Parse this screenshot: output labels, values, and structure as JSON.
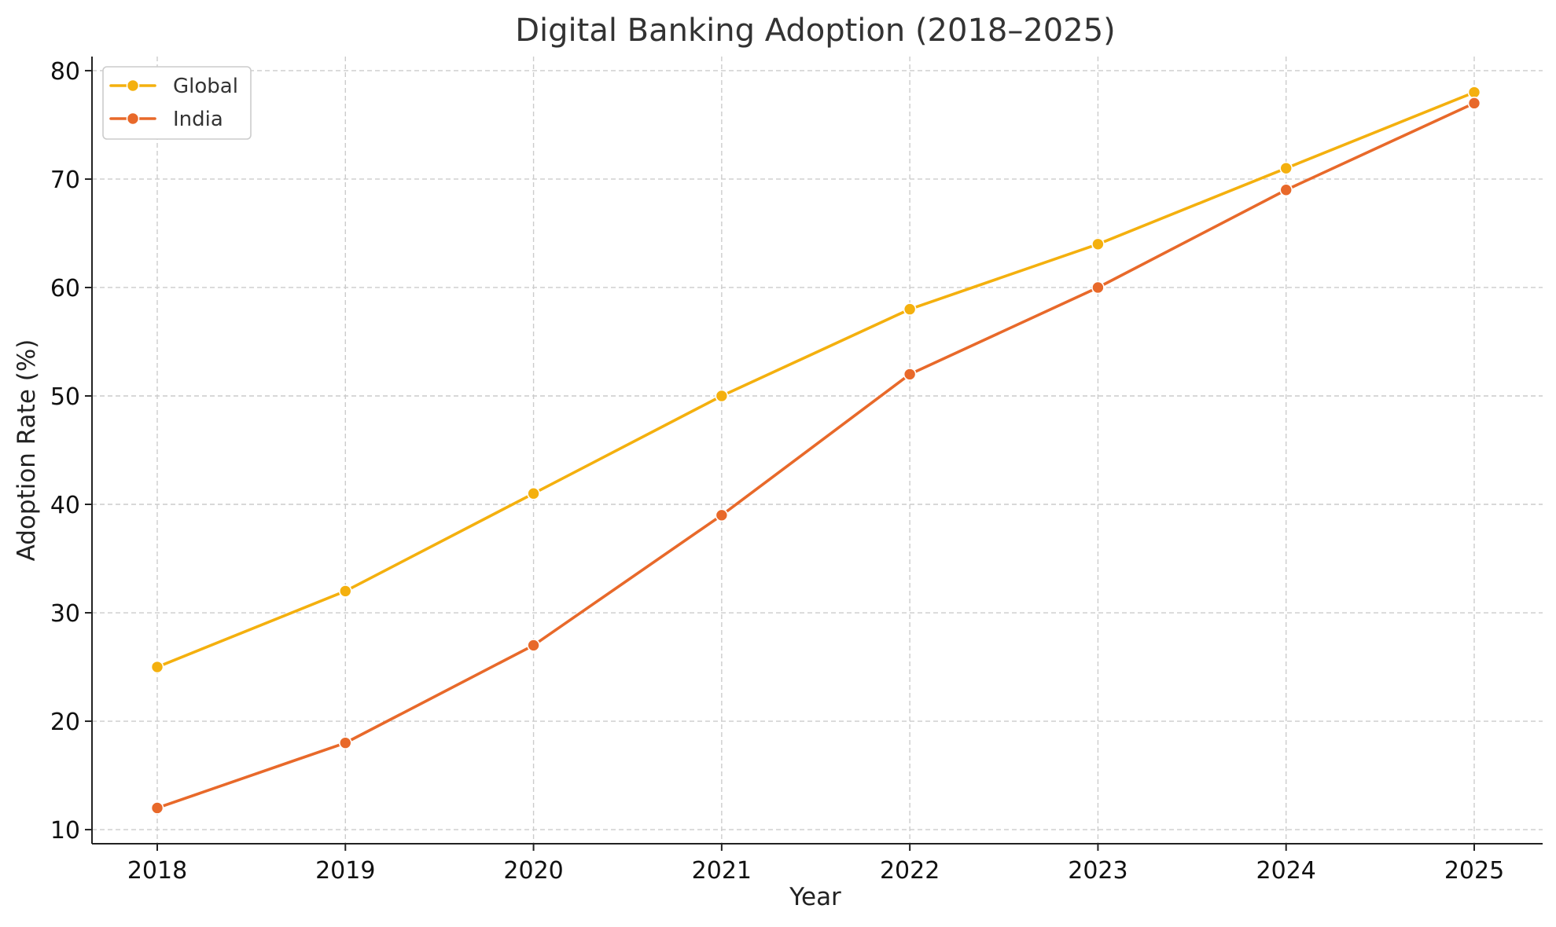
{
  "chart_data": {
    "type": "line",
    "title": "Digital Banking Adoption (2018–2025)",
    "xlabel": "Year",
    "ylabel": "Adoption Rate (%)",
    "x": [
      "2018",
      "2019",
      "2020",
      "2021",
      "2022",
      "2023",
      "2024",
      "2025"
    ],
    "yticks": [
      "10",
      "20",
      "30",
      "40",
      "50",
      "60",
      "70",
      "80"
    ],
    "ylim": [
      8.7,
      81.3
    ],
    "grid": true,
    "legend_position": "top-left",
    "series": [
      {
        "name": "Global",
        "color": "#F4B00E",
        "marker": "circle",
        "values": [
          25,
          32,
          41,
          50,
          58,
          64,
          71,
          78
        ]
      },
      {
        "name": "India",
        "color": "#E8692A",
        "marker": "circle",
        "values": [
          12,
          18,
          27,
          39,
          52,
          60,
          69,
          77
        ]
      }
    ]
  }
}
